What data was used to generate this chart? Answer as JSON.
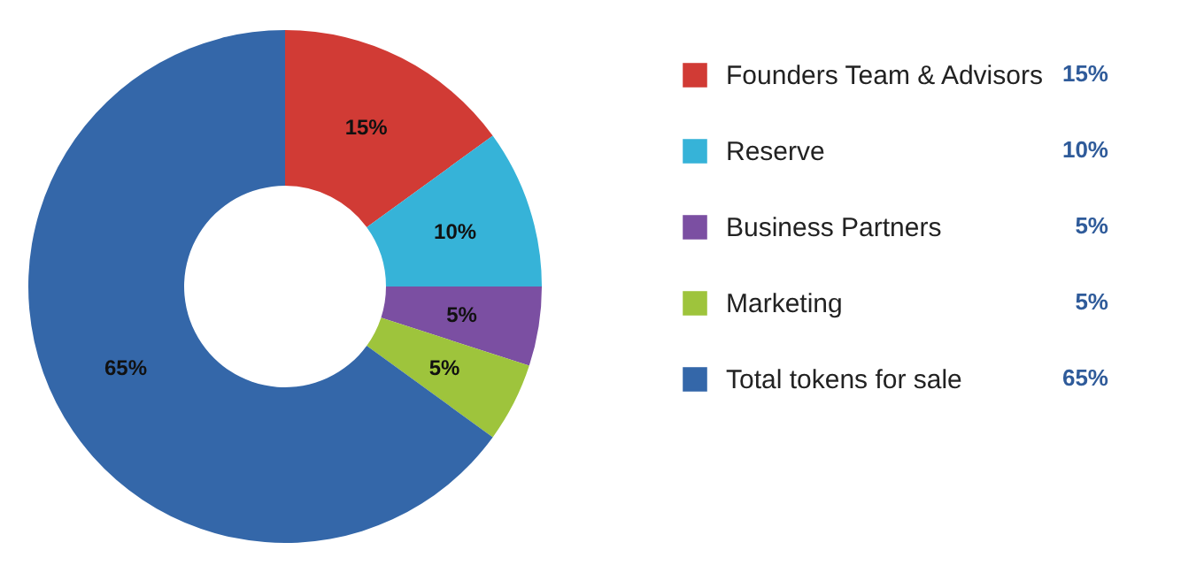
{
  "chart_data": {
    "type": "donut",
    "categories": [
      "Founders Team & Advisors",
      "Reserve",
      "Business Partners",
      "Marketing",
      "Total tokens for sale"
    ],
    "values": [
      15,
      10,
      5,
      5,
      65
    ],
    "colors": [
      "#d13b35",
      "#36b3d8",
      "#7b4fa2",
      "#9ec43c",
      "#3467a9"
    ],
    "value_labels": [
      "15%",
      "10%",
      "5%",
      "5%",
      "65%"
    ],
    "legend": "right"
  }
}
